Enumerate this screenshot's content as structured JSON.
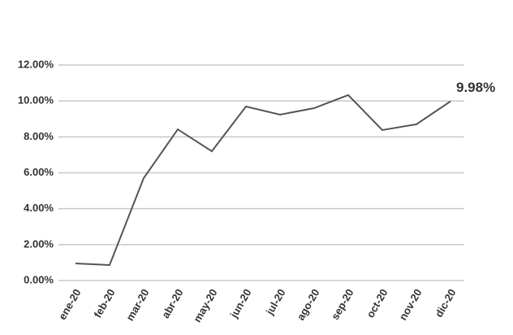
{
  "chart_data": {
    "type": "line",
    "categories": [
      "ene-20",
      "feb-20",
      "mar-20",
      "abr-20",
      "may-20",
      "jun-20",
      "jul-20",
      "ago-20",
      "sep-20",
      "oct-20",
      "nov-20",
      "dic-20"
    ],
    "series": [
      {
        "color": "#555555",
        "values": [
          0.95,
          0.86,
          5.7,
          8.42,
          7.2,
          9.69,
          9.24,
          9.6,
          10.33,
          8.38,
          8.7,
          9.98
        ],
        "value_labels": [
          null,
          null,
          null,
          null,
          null,
          null,
          null,
          null,
          null,
          null,
          null,
          "9.98%"
        ]
      }
    ],
    "ylim": [
      0,
      12
    ],
    "yticks": [
      {
        "value": 0,
        "label": "0.00%"
      },
      {
        "value": 2,
        "label": "2.00%"
      },
      {
        "value": 4,
        "label": "4.00%"
      },
      {
        "value": 6,
        "label": "6.00%"
      },
      {
        "value": 8,
        "label": "8.00%"
      },
      {
        "value": 10,
        "label": "10.00%"
      },
      {
        "value": 12,
        "label": "12.00%"
      }
    ],
    "grid": true
  }
}
